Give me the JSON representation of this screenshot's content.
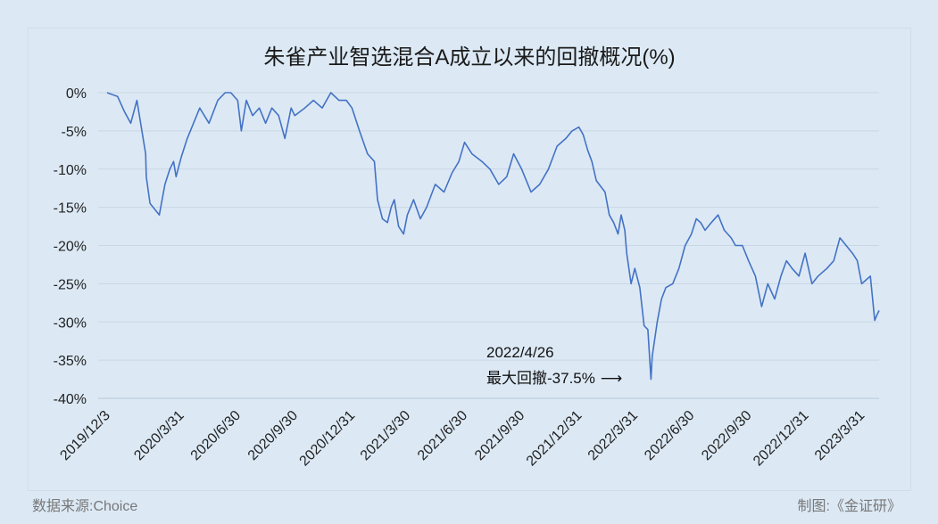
{
  "chart_data": {
    "type": "line",
    "title": "朱雀产业智选混合A成立以来的回撤概况(%)",
    "ylim": [
      -40,
      0
    ],
    "y_ticks": [
      "0%",
      "-5%",
      "-10%",
      "-15%",
      "-20%",
      "-25%",
      "-30%",
      "-35%",
      "-40%"
    ],
    "x_ticks": [
      "2019/12/3",
      "2020/3/31",
      "2020/6/30",
      "2020/9/30",
      "2020/12/31",
      "2021/3/30",
      "2021/6/30",
      "2021/9/30",
      "2021/12/31",
      "2022/3/31",
      "2022/6/30",
      "2022/9/30",
      "2022/12/31",
      "2023/3/31"
    ],
    "grid": true,
    "legend": "none",
    "color": "#4472c4",
    "series": [
      {
        "x": [
          "2019/12/3",
          "2019/12/20",
          "2019/12/31",
          "2020/1/10",
          "2020/1/20",
          "2020/2/3",
          "2020/2/4",
          "2020/2/10",
          "2020/2/25",
          "2020/3/5",
          "2020/3/13",
          "2020/3/19",
          "2020/3/23",
          "2020/3/31",
          "2020/4/10",
          "2020/4/20",
          "2020/4/30",
          "2020/5/15",
          "2020/5/29",
          "2020/6/10",
          "2020/6/19",
          "2020/6/30",
          "2020/7/6",
          "2020/7/14",
          "2020/7/24",
          "2020/8/4",
          "2020/8/14",
          "2020/8/24",
          "2020/9/4",
          "2020/9/14",
          "2020/9/24",
          "2020/9/30",
          "2020/10/16",
          "2020/10/30",
          "2020/11/13",
          "2020/11/27",
          "2020/12/10",
          "2020/12/22",
          "2020/12/31",
          "2021/1/12",
          "2021/1/25",
          "2021/2/5",
          "2021/2/10",
          "2021/2/18",
          "2021/2/26",
          "2021/3/4",
          "2021/3/9",
          "2021/3/16",
          "2021/3/24",
          "2021/3/30",
          "2021/4/9",
          "2021/4/20",
          "2021/4/30",
          "2021/5/14",
          "2021/5/28",
          "2021/6/10",
          "2021/6/21",
          "2021/6/30",
          "2021/7/12",
          "2021/7/28",
          "2021/8/10",
          "2021/8/24",
          "2021/9/6",
          "2021/9/17",
          "2021/9/30",
          "2021/10/15",
          "2021/10/29",
          "2021/11/12",
          "2021/11/26",
          "2021/12/10",
          "2021/12/20",
          "2021/12/31",
          "2022/1/7",
          "2022/1/14",
          "2022/1/21",
          "2022/1/28",
          "2022/2/11",
          "2022/2/18",
          "2022/2/25",
          "2022/3/4",
          "2022/3/9",
          "2022/3/15",
          "2022/3/18",
          "2022/3/25",
          "2022/3/31",
          "2022/4/8",
          "2022/4/15",
          "2022/4/21",
          "2022/4/26",
          "2022/4/28",
          "2022/5/6",
          "2022/5/13",
          "2022/5/20",
          "2022/5/31",
          "2022/6/10",
          "2022/6/20",
          "2022/6/30",
          "2022/7/8",
          "2022/7/15",
          "2022/7/22",
          "2022/8/1",
          "2022/8/12",
          "2022/8/22",
          "2022/9/2",
          "2022/9/9",
          "2022/9/20",
          "2022/9/30",
          "2022/10/11",
          "2022/10/21",
          "2022/10/31",
          "2022/11/11",
          "2022/11/21",
          "2022/11/30",
          "2022/12/9",
          "2022/12/20",
          "2022/12/30",
          "2023/1/10",
          "2023/1/20",
          "2023/2/3",
          "2023/2/14",
          "2023/2/24",
          "2023/3/6",
          "2023/3/16",
          "2023/3/24",
          "2023/3/31",
          "2023/4/7",
          "2023/4/14",
          "2023/4/21",
          "2023/4/25",
          "2023/4/28"
        ],
        "y": [
          0,
          -0.5,
          -2.5,
          -4,
          -1,
          -8,
          -11,
          -14.5,
          -16,
          -12,
          -10,
          -9,
          -11,
          -8.5,
          -6,
          -4,
          -2,
          -4,
          -1,
          0,
          0,
          -1,
          -5,
          -1,
          -3,
          -2,
          -4,
          -2,
          -3,
          -6,
          -2,
          -3,
          -2,
          -1,
          -2,
          0,
          -1,
          -1,
          -2,
          -5,
          -8,
          -9,
          -14,
          -16.5,
          -17,
          -15,
          -14,
          -17.5,
          -18.5,
          -16,
          -14,
          -16.5,
          -15,
          -12,
          -13,
          -10.5,
          -9,
          -6.5,
          -8,
          -9,
          -10,
          -12,
          -11,
          -8,
          -10,
          -13,
          -12,
          -10,
          -7,
          -6,
          -5,
          -4.5,
          -5.5,
          -7.5,
          -9,
          -11.5,
          -13,
          -16,
          -17,
          -18.5,
          -16,
          -18,
          -21,
          -25,
          -23,
          -25.5,
          -30.5,
          -31,
          -37.5,
          -34.5,
          -30,
          -27,
          -25.5,
          -25,
          -23,
          -20,
          -18.5,
          -16.5,
          -17,
          -18,
          -17,
          -16,
          -18,
          -19,
          -20,
          -20,
          -22,
          -24,
          -28,
          -25,
          -27,
          -24,
          -22,
          -23,
          -24,
          -21,
          -25,
          -24,
          -23,
          -22,
          -19,
          -20,
          -21,
          -22,
          -25,
          -24.5,
          -24,
          -29.8,
          -29,
          -28.5
        ]
      }
    ],
    "annotation": {
      "line1": "2022/4/26",
      "line2": "最大回撤-37.5%",
      "x": "2022/4/26",
      "y": -37.5
    }
  },
  "footer": {
    "source": "数据来源:Choice",
    "credit": "制图:《金证研》"
  }
}
